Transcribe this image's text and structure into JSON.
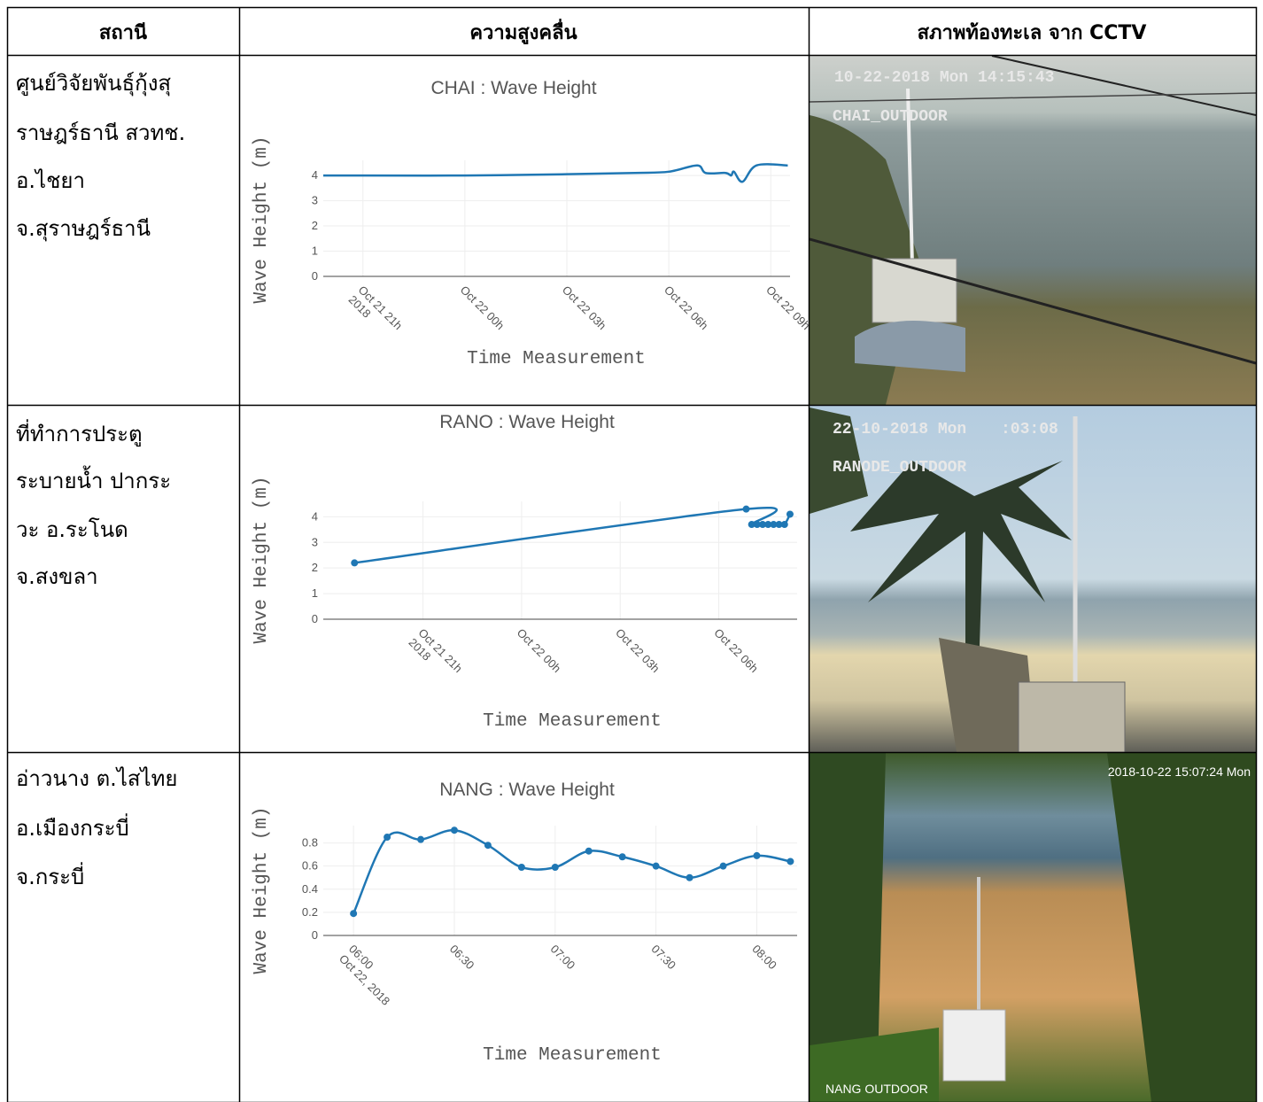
{
  "table": {
    "header": [
      "สถานี",
      "ความสูงคลื่น",
      "สภาพท้องทะเล จาก CCTV"
    ],
    "rows": [
      {
        "station": [
          "ศูนย์วิจัยพันธุ์กุ้งสุ",
          "ราษฎร์ธานี สวทช.",
          "อ.ไชยา",
          "จ.สุราษฎร์ธานี"
        ],
        "cctv": [
          "10-22-2018 Mon 14:15:43",
          "CHAI_OUTDOOR"
        ]
      },
      {
        "station": [
          "ที่ทำการประตู",
          "ระบายน้ำ ปากระ",
          "วะ อ.ระโนด",
          "จ.สงขลา"
        ],
        "cctv": [
          "22-10-2018 Mon",
          ":03:08",
          "RANODE_OUTDOOR"
        ]
      },
      {
        "station": [
          "อ่าวนาง ต.ไสไทย",
          "อ.เมืองกระบี่",
          "จ.กระบี่"
        ],
        "cctv": [
          "2018-10-22 15:07:24 Mon",
          "NANG OUTDOOR"
        ]
      }
    ]
  },
  "chart_data": [
    {
      "type": "line",
      "title": "CHAI : Wave Height",
      "x_label": "Time Measurement",
      "y_label": "Wave Height (m)",
      "x": [
        "2018-10-21 19:50",
        "2018-10-21 21:00",
        "2018-10-22 00:00",
        "2018-10-22 03:00",
        "2018-10-22 05:00",
        "2018-10-22 06:00",
        "2018-10-22 06:50",
        "2018-10-22 07:05",
        "2018-10-22 07:40",
        "2018-10-22 07:50",
        "2018-10-22 07:55",
        "2018-10-22 08:10",
        "2018-10-22 08:35",
        "2018-10-22 09:30"
      ],
      "values": [
        4.0,
        4.0,
        4.0,
        4.05,
        4.1,
        4.15,
        4.4,
        4.1,
        4.1,
        4.0,
        4.15,
        3.75,
        4.4,
        4.4
      ],
      "color": "#1f77b4",
      "markers": false,
      "line_shape": "spline",
      "grid": true,
      "xlim": [
        "2018-10-21 19:50",
        "2018-10-22 09:34"
      ],
      "xticks": [
        {
          "value": "2018-10-21 21:00",
          "label": [
            "Oct 21 21h",
            "2018"
          ]
        },
        {
          "value": "2018-10-22 00:00",
          "label": [
            "Oct 22 00h"
          ]
        },
        {
          "value": "2018-10-22 03:00",
          "label": [
            "Oct 22 03h"
          ]
        },
        {
          "value": "2018-10-22 06:00",
          "label": [
            "Oct 22 06h"
          ]
        },
        {
          "value": "2018-10-22 09:00",
          "label": [
            "Oct 22 09h"
          ]
        }
      ],
      "ylim": [
        0,
        4.6
      ],
      "yticks": [
        0,
        1,
        2,
        3,
        4
      ]
    },
    {
      "type": "line",
      "title": "RANO : Wave Height",
      "x_label": "Time Measurement",
      "y_label": "Wave Height (m)",
      "x": [
        "2018-10-21 18:55",
        "2018-10-22 06:50",
        "2018-10-22 07:00",
        "2018-10-22 07:10",
        "2018-10-22 07:20",
        "2018-10-22 07:30",
        "2018-10-22 07:40",
        "2018-10-22 07:50",
        "2018-10-22 08:00",
        "2018-10-22 08:10"
      ],
      "values": [
        2.2,
        4.3,
        3.7,
        3.7,
        3.7,
        3.7,
        3.7,
        3.7,
        3.7,
        4.1
      ],
      "color": "#1f77b4",
      "markers": true,
      "line_shape": "spline",
      "grid": true,
      "xlim": [
        "2018-10-21 17:58",
        "2018-10-22 08:23"
      ],
      "xticks": [
        {
          "value": "2018-10-21 21:00",
          "label": [
            "Oct 21 21h",
            "2018"
          ]
        },
        {
          "value": "2018-10-22 00:00",
          "label": [
            "Oct 22 00h"
          ]
        },
        {
          "value": "2018-10-22 03:00",
          "label": [
            "Oct 22 03h"
          ]
        },
        {
          "value": "2018-10-22 06:00",
          "label": [
            "Oct 22 06h"
          ]
        }
      ],
      "ylim": [
        0,
        4.6
      ],
      "yticks": [
        0,
        1,
        2,
        3,
        4
      ]
    },
    {
      "type": "line",
      "title": "NANG : Wave Height",
      "x_label": "Time Measurement",
      "y_label": "Wave Height (m)",
      "x": [
        "2018-10-22 06:00",
        "2018-10-22 06:10",
        "2018-10-22 06:20",
        "2018-10-22 06:30",
        "2018-10-22 06:40",
        "2018-10-22 06:50",
        "2018-10-22 07:00",
        "2018-10-22 07:10",
        "2018-10-22 07:20",
        "2018-10-22 07:30",
        "2018-10-22 07:40",
        "2018-10-22 07:50",
        "2018-10-22 08:00",
        "2018-10-22 08:10"
      ],
      "values": [
        0.19,
        0.85,
        0.83,
        0.91,
        0.78,
        0.59,
        0.59,
        0.73,
        0.68,
        0.6,
        0.5,
        0.6,
        0.69,
        0.64
      ],
      "color": "#1f77b4",
      "markers": true,
      "line_shape": "spline",
      "grid": true,
      "xlim": [
        "2018-10-22 05:51",
        "2018-10-22 08:12"
      ],
      "xticks": [
        {
          "value": "2018-10-22 06:00",
          "label": [
            "06:00",
            "Oct 22, 2018"
          ]
        },
        {
          "value": "2018-10-22 06:30",
          "label": [
            "06:30"
          ]
        },
        {
          "value": "2018-10-22 07:00",
          "label": [
            "07:00"
          ]
        },
        {
          "value": "2018-10-22 07:30",
          "label": [
            "07:30"
          ]
        },
        {
          "value": "2018-10-22 08:00",
          "label": [
            "08:00"
          ]
        }
      ],
      "ylim": [
        0,
        0.95
      ],
      "yticks": [
        0,
        0.2,
        0.4,
        0.6,
        0.8
      ]
    }
  ]
}
